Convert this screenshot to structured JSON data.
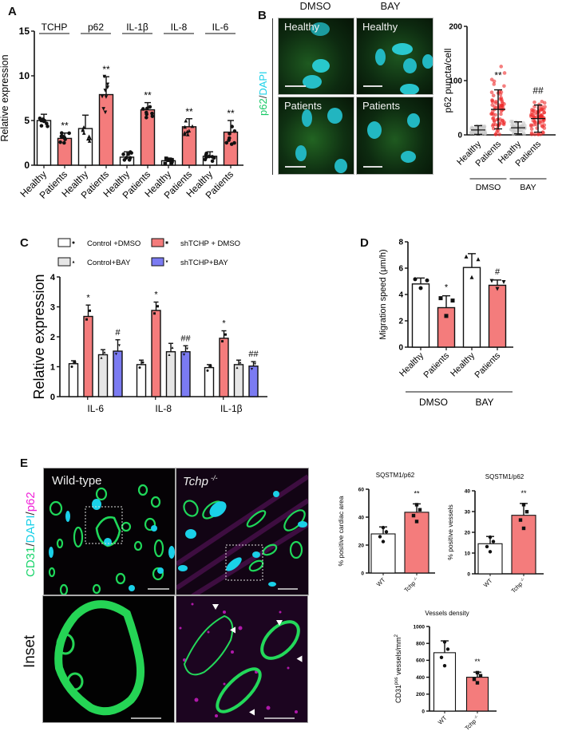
{
  "panels": {
    "A": {
      "label": "A"
    },
    "B": {
      "label": "B",
      "col_headers": [
        "DMSO",
        "BAY"
      ],
      "stain_label": {
        "p62": "p62",
        "sep": "/",
        "dapi": "DAPI"
      },
      "image_labels": [
        "Healthy",
        "Healthy",
        "Patients",
        "Patients"
      ]
    },
    "C": {
      "label": "C"
    },
    "D": {
      "label": "D"
    },
    "E": {
      "label": "E",
      "image_labels": [
        "Wild-type",
        "Tchp"
      ],
      "tchp_superscript": "-/-",
      "row_label_inset": "Inset",
      "stain_label": {
        "cd31": "CD31",
        "sep1": "/",
        "dapi": "DAPI",
        "sep2": "/",
        "p62": "p62"
      }
    }
  },
  "colors": {
    "patients_fill": "#f47c7c",
    "red_dots": "#ee2a2a",
    "grey_fill": "#e6e6e6",
    "blue_fill": "#7b7bf2",
    "cd31_green": "#18d46a",
    "dapi_cyan": "#1ad0e8",
    "p62_magenta": "#f020d8"
  },
  "chart_data": [
    {
      "id": "A",
      "type": "bar",
      "title": "",
      "ylabel": "Relative expression",
      "ylim": [
        0,
        15
      ],
      "yticks": [
        0,
        5,
        10,
        15
      ],
      "groups": [
        "TCHP",
        "p62",
        "IL-1β",
        "IL-8",
        "IL-6"
      ],
      "categories": [
        "Healthy",
        "Patients",
        "Healthy",
        "Patients",
        "Healthy",
        "Patients",
        "Healthy",
        "Patients",
        "Healthy",
        "Patients"
      ],
      "values": [
        5.0,
        3.0,
        4.1,
        7.9,
        0.9,
        6.2,
        0.5,
        4.3,
        1.0,
        3.7
      ],
      "errors": [
        0.7,
        0.6,
        1.5,
        2.0,
        0.6,
        0.8,
        0.3,
        0.9,
        0.5,
        1.3
      ],
      "significance": [
        "",
        "**",
        "",
        "**",
        "",
        "**",
        "",
        "**",
        "",
        "**"
      ]
    },
    {
      "id": "B",
      "type": "scatter",
      "ylabel": "p62 puncta/cell",
      "ylim": [
        0,
        200
      ],
      "yticks": [
        0,
        100,
        200
      ],
      "categories": [
        "Healthy",
        "Patients",
        "Heathy",
        "Patients"
      ],
      "groups": [
        "DMSO",
        "BAY"
      ],
      "means": [
        9,
        47,
        13,
        30
      ],
      "sd": [
        8,
        36,
        11,
        25
      ],
      "significance": [
        "",
        "**",
        "",
        "##"
      ]
    },
    {
      "id": "C",
      "type": "bar",
      "ylabel": "Relative expression",
      "ylim": [
        0,
        4
      ],
      "yticks": [
        0,
        1,
        2,
        3,
        4
      ],
      "categories": [
        "IL-6",
        "IL-8",
        "IL-1β"
      ],
      "legend": [
        "Control +DMSO",
        "shTCHP + DMSO",
        "Control+BAY",
        "shTCHP+BAY"
      ],
      "series": [
        {
          "name": "Control +DMSO",
          "values": [
            1.1,
            1.07,
            0.97
          ],
          "errors": [
            0.1,
            0.15,
            0.1
          ],
          "significance": [
            "",
            "",
            ""
          ]
        },
        {
          "name": "shTCHP + DMSO",
          "values": [
            2.68,
            2.88,
            1.95
          ],
          "errors": [
            0.38,
            0.28,
            0.25
          ],
          "significance": [
            "*",
            "*",
            "*"
          ]
        },
        {
          "name": "Control+BAY",
          "values": [
            1.4,
            1.5,
            1.07
          ],
          "errors": [
            0.17,
            0.28,
            0.15
          ],
          "significance": [
            "",
            "",
            ""
          ]
        },
        {
          "name": "shTCHP+BAY",
          "values": [
            1.52,
            1.5,
            1.02
          ],
          "errors": [
            0.38,
            0.2,
            0.15
          ],
          "significance": [
            "#",
            "##",
            "##"
          ]
        }
      ]
    },
    {
      "id": "D",
      "type": "bar",
      "ylabel": "Migration speed (μm/h)",
      "ylim": [
        0,
        8
      ],
      "yticks": [
        0,
        2,
        4,
        6,
        8
      ],
      "categories": [
        "Healthy",
        "Patients",
        "Healthy",
        "Patients"
      ],
      "groups": [
        "DMSO",
        "BAY"
      ],
      "values": [
        4.8,
        3.0,
        6.05,
        4.7
      ],
      "errors": [
        0.45,
        0.9,
        1.05,
        0.4
      ],
      "significance": [
        "",
        "*",
        "",
        "#"
      ]
    },
    {
      "id": "E1",
      "type": "bar",
      "title": "SQSTM1/p62",
      "ylabel": "% positive cardiac area",
      "ylim": [
        0,
        60
      ],
      "yticks": [
        0,
        20,
        40,
        60
      ],
      "categories": [
        "WT",
        "Tchp -/-"
      ],
      "values": [
        28,
        43.5
      ],
      "errors": [
        5,
        6
      ],
      "significance": [
        "",
        "**"
      ]
    },
    {
      "id": "E2",
      "type": "bar",
      "title": "SQSTM1/p62",
      "ylabel": "% positive vessels",
      "ylim": [
        0,
        40
      ],
      "yticks": [
        0,
        10,
        20,
        30,
        40
      ],
      "categories": [
        "WT",
        "Tchp -/-"
      ],
      "values": [
        14.5,
        28.2
      ],
      "errors": [
        3.5,
        5.7
      ],
      "significance": [
        "",
        "**"
      ]
    },
    {
      "id": "E3",
      "type": "bar",
      "title": "Vessels density",
      "ylabel": "CD31pos vessels/mm2",
      "ylim": [
        0,
        1000
      ],
      "yticks": [
        0,
        200,
        400,
        600,
        800,
        1000
      ],
      "categories": [
        "WT",
        "Tchp -/-"
      ],
      "values": [
        690,
        400
      ],
      "errors": [
        140,
        60
      ],
      "significance": [
        "",
        "**"
      ]
    }
  ]
}
